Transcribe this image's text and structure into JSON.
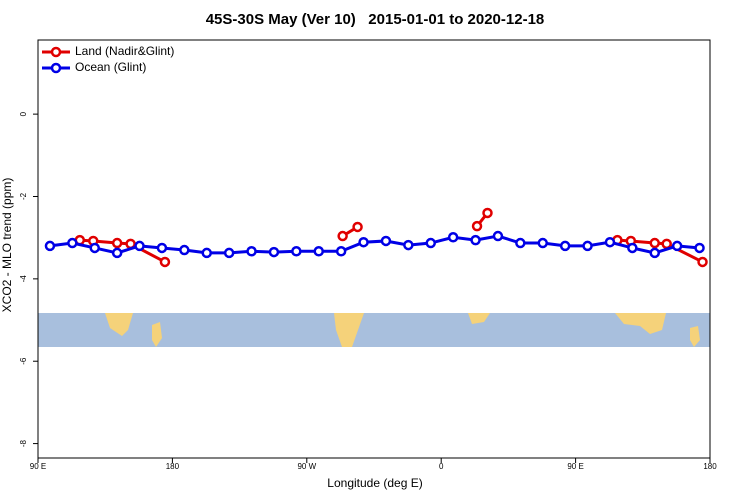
{
  "chart_data": {
    "type": "line",
    "title": "45S-30S May (Ver 10)   2015-01-01 to 2020-12-18",
    "x_label": "Longitude (deg E)",
    "y_label": "XCO2 - MLO trend (ppm)",
    "xlim": [
      90,
      540
    ],
    "ylim": [
      -8.35,
      1.8
    ],
    "xticks": [
      {
        "value": 90,
        "label": "90 E"
      },
      180,
      {
        "value": 270,
        "label": "90 W"
      },
      {
        "value": 360,
        "label": "0"
      },
      {
        "value": 450,
        "label": "90 E"
      },
      {
        "value": 540,
        "label": "180"
      }
    ],
    "yticks": [
      0,
      -2,
      -4,
      -6,
      -8
    ],
    "legend": "top-left",
    "series": [
      {
        "name": "Land (Nadir&Glint)",
        "color": "#e00000",
        "x": [
          118,
          127,
          143,
          152,
          175,
          null,
          294,
          304,
          null,
          384,
          391,
          null,
          478,
          487,
          503,
          511,
          535
        ],
        "values": [
          -3.06,
          -3.08,
          -3.13,
          -3.15,
          -3.59,
          null,
          -2.96,
          -2.74,
          null,
          -2.72,
          -2.4,
          null,
          -3.06,
          -3.08,
          -3.13,
          -3.15,
          -3.59
        ]
      },
      {
        "name": "Ocean (Glint)",
        "color": "#0000e6",
        "x": [
          98,
          113,
          128,
          143,
          158,
          173,
          188,
          203,
          218,
          233,
          248,
          263,
          278,
          293,
          308,
          323,
          338,
          353,
          368,
          383,
          398,
          413,
          428,
          443,
          458,
          473,
          488,
          503,
          518,
          533
        ],
        "values": [
          -3.2,
          -3.13,
          -3.25,
          -3.37,
          -3.2,
          -3.25,
          -3.3,
          -3.37,
          -3.37,
          -3.33,
          -3.35,
          -3.33,
          -3.33,
          -3.33,
          -3.11,
          -3.08,
          -3.18,
          -3.13,
          -2.99,
          -3.06,
          -2.96,
          -3.13,
          -3.13,
          -3.2,
          -3.2,
          -3.11,
          -3.25,
          -3.37,
          -3.2,
          -3.25
        ]
      }
    ]
  }
}
